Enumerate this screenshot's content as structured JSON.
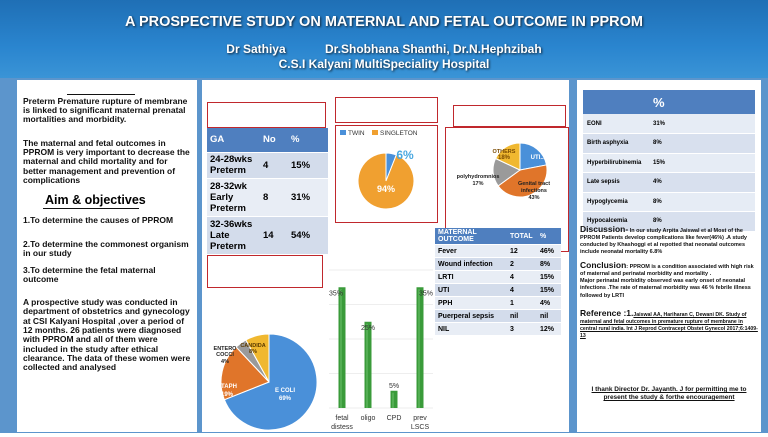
{
  "header": {
    "title": "A PROSPECTIVE STUDY ON MATERNAL AND FETAL OUTCOME IN PPROM",
    "author1": "Dr Sathiya",
    "author2": "Dr.Shobhana Shanthi, Dr.N.Hephzibah",
    "institution": "C.S.I Kalyani MultiSpeciality Hospital"
  },
  "intro": {
    "p1": "Preterm Premature rupture of membrane is linked to significant maternal prenatal mortalities and morbidity.",
    "p2": "The maternal and fetal outcomes in PPROM is very important to decrease the maternal and child mortality and for better management and prevention of complications"
  },
  "aims": {
    "heading": "Aim & objectives",
    "items": [
      "1.To determine the causes of PPROM",
      "2.To determine the commonest organism in our study",
      "3.To determine the fetal maternal outcome"
    ]
  },
  "methods": "A prospective study was conducted in department of obstetrics and gynecology at CSI Kalyani Hospital ,over a period of 12 months. 26 patients were diagnosed with PPROM and all of them were included in the study after ethical clearance. The data of these women were collected and analysed",
  "ga_table": {
    "headers": [
      "GA",
      "No",
      "%"
    ],
    "rows": [
      [
        "24-28wks Preterm",
        "4",
        "15%"
      ],
      [
        "28-32wk Early Preterm",
        "8",
        "31%"
      ],
      [
        "32-36wks Late Preterm",
        "14",
        "54%"
      ]
    ]
  },
  "maternal_table": {
    "headers": [
      "MATERNAL OUTCOME",
      "TOTAL",
      "%"
    ],
    "rows": [
      [
        "Fever",
        "12",
        "46%"
      ],
      [
        "Wound infection",
        "2",
        "8%"
      ],
      [
        "LRTI",
        "4",
        "15%"
      ],
      [
        "UTI",
        "4",
        "15%"
      ],
      [
        "PPH",
        "1",
        "4%"
      ],
      [
        "Puerperal sepsis",
        "nil",
        "nil"
      ],
      [
        "NIL",
        "3",
        "12%"
      ]
    ]
  },
  "complications_table": {
    "headers": [
      "",
      "%"
    ],
    "rows": [
      [
        "EONI",
        "31%"
      ],
      [
        "Birth asphyxia",
        "8%"
      ],
      [
        "Hyperbilirubinemia",
        "15%"
      ],
      [
        "Late sepsis",
        "4%"
      ],
      [
        "Hypoglycemia",
        "8%"
      ],
      [
        "Hypocalcemia",
        "8%"
      ]
    ]
  },
  "discussion": {
    "label": "Discussion-",
    "text": " In our study Arpita Jaiswal et al Most of the PPROM Patients develop complications like fever(46%) .A study conducted by Khashoggi et al repotted that neonatal outcomes include neonatal mortality 6.8%"
  },
  "conclusion": {
    "label": "Conclusion",
    "text": ": PPROM is a condition associated with high risk of maternal and perinatal morbidity and mortality .",
    "text2": "Major perinatal morbidity observed was early onset of neonatal infections .The rate of maternal morbidity was 46 % febrile illness followed by LRTI"
  },
  "reference": {
    "label": "Reference :1.",
    "text": "Jaiswal AA, Hariharan C, Dewani DK. Study of maternal and fetal outcomes in premature rupture of membrane in central rural india. Int J Reprod Contracept Obstet Gynecol 2017;6:1409-13"
  },
  "acknowledgement": "I thank Director Dr. Jayanth. J for permitting me to present the study & forthe encouragement",
  "colors": {
    "blue": "#4a90d9",
    "orange": "#f0a030",
    "green": "#3a9b3a",
    "red_box": "#c0282d",
    "gray": "#9a9a9a",
    "dark_orange": "#e0752a"
  },
  "chart_data": [
    {
      "type": "pie",
      "legend": [
        "TWIN",
        "SINGLETON"
      ],
      "labels": [
        "TWIN",
        "SINGLETON"
      ],
      "values": [
        6,
        94
      ],
      "data_labels": [
        "6%",
        "94%"
      ],
      "colors": [
        "#4a90d9",
        "#f0a030"
      ]
    },
    {
      "type": "pie",
      "labels": [
        "UTI...",
        "Genital tract infections",
        "polyhydromnios",
        "OTHERS"
      ],
      "values": [
        22,
        43,
        17,
        18
      ],
      "data_labels": [
        "",
        "43%",
        "17%",
        "18%"
      ],
      "colors": [
        "#4a90d9",
        "#e0752a",
        "#9a9a9a",
        "#f0b830"
      ]
    },
    {
      "type": "pie",
      "labels": [
        "E COLI",
        "STAPH",
        "ENTERO COCCI",
        "CANDIDA"
      ],
      "values": [
        69,
        19,
        4,
        8
      ],
      "data_labels": [
        "69%",
        "19%",
        "4%",
        "8%"
      ],
      "colors": [
        "#4a90d9",
        "#e0752a",
        "#9a9a9a",
        "#f0b830"
      ]
    },
    {
      "type": "bar",
      "categories": [
        "fetal distess",
        "oligo",
        "CPD",
        "prev LSCS"
      ],
      "values": [
        35,
        25,
        5,
        35
      ],
      "data_labels": [
        "35%",
        "25%",
        "5%",
        "35%"
      ],
      "ylim": [
        0,
        40
      ],
      "color": "#3a9b3a",
      "grid": true
    }
  ]
}
